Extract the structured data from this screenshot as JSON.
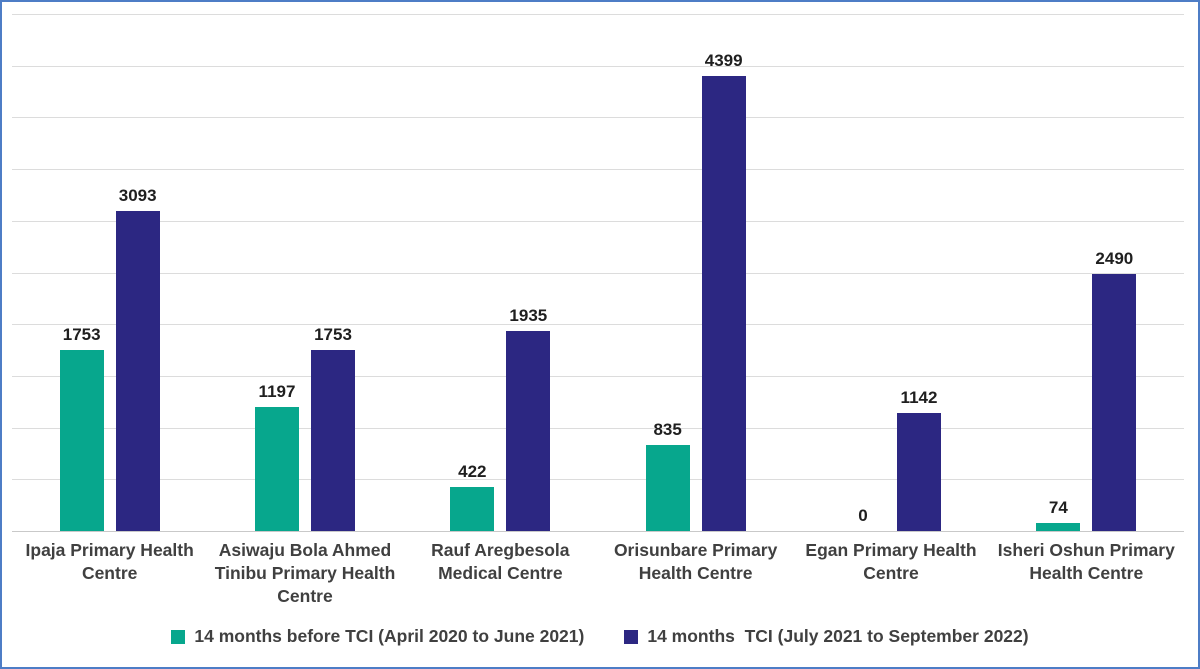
{
  "chart_data": {
    "type": "bar",
    "title": "",
    "xlabel": "",
    "ylabel": "",
    "categories": [
      "Ipaja Primary Health Centre",
      "Asiwaju Bola Ahmed Tinibu Primary Health Centre",
      "Rauf Aregbesola Medical Centre",
      "Orisunbare Primary Health Centre",
      "Egan Primary Health Centre",
      "Isheri Oshun Primary Health Centre"
    ],
    "series": [
      {
        "name": "14 months before TCI (April 2020 to June 2021)",
        "color": "#07a78d",
        "values": [
          1753,
          1197,
          422,
          835,
          0,
          74
        ]
      },
      {
        "name": "14 months  TCI (July 2021 to September 2022)",
        "color": "#2c2782",
        "values": [
          3093,
          1753,
          1935,
          4399,
          1142,
          2490
        ]
      }
    ],
    "ylim": [
      0,
      5000
    ],
    "gridline_step": 500,
    "grid": true,
    "y_axis_labels_visible": false,
    "data_labels": true,
    "legend_position": "bottom"
  },
  "colors": {
    "frame_border": "#4e7dc6",
    "gridline": "#dcdcdc",
    "axis_line": "#c9c9c9",
    "data_label_text": "#1f1f1f",
    "category_text": "#404040",
    "legend_text": "#404040",
    "background": "#ffffff"
  }
}
